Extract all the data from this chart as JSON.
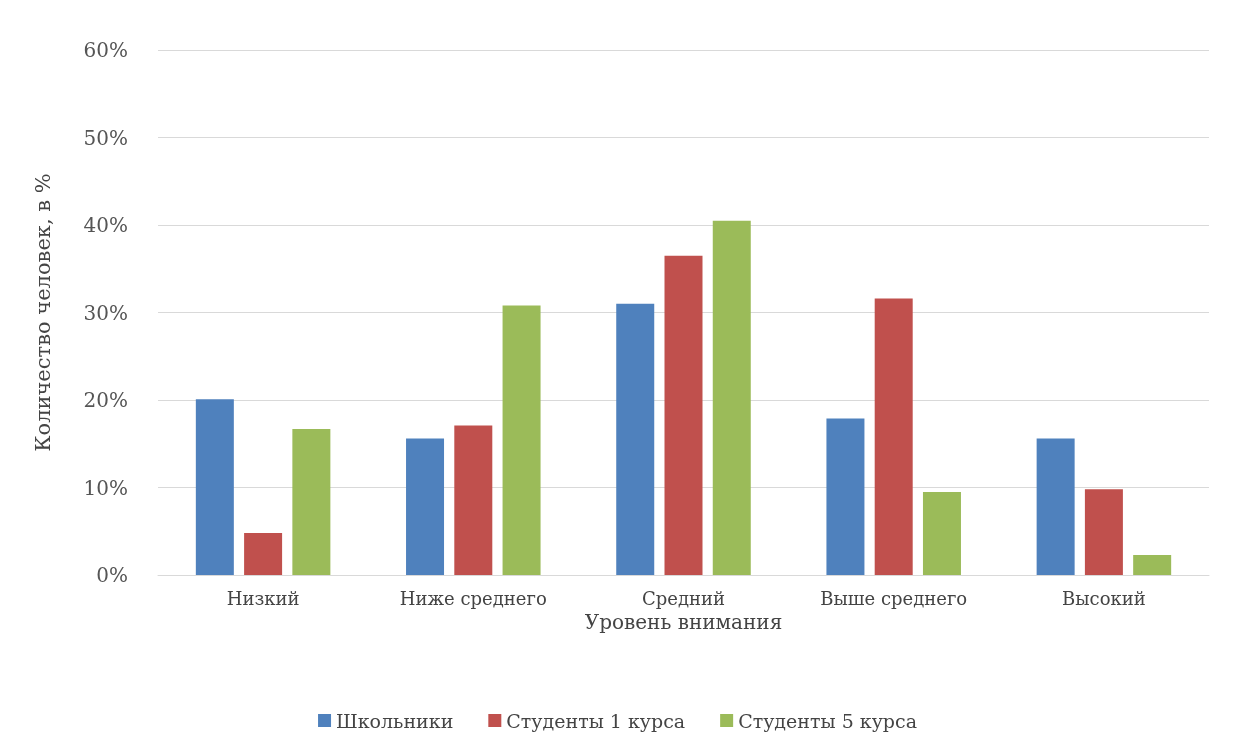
{
  "chart_data": {
    "type": "bar",
    "xlabel": "Уровень внимания",
    "ylabel": "Количество человек, в %",
    "categories": [
      "Низкий",
      "Ниже среднего",
      "Средний",
      "Выше среднего",
      "Высокий"
    ],
    "series": [
      {
        "name": "Школьники",
        "color": "#4f81bd",
        "values": [
          20.1,
          15.6,
          31.0,
          17.9,
          15.6
        ]
      },
      {
        "name": "Студенты 1 курса",
        "color": "#c0504d",
        "values": [
          4.8,
          17.1,
          36.5,
          31.6,
          9.8
        ]
      },
      {
        "name": "Студенты 5 курса",
        "color": "#9bbb59",
        "values": [
          16.7,
          30.8,
          40.5,
          9.5,
          2.3
        ]
      }
    ],
    "ylim": [
      0,
      60
    ],
    "yticks": [
      {
        "value": 0,
        "label": "0%"
      },
      {
        "value": 10,
        "label": "10%"
      },
      {
        "value": 20,
        "label": "20%"
      },
      {
        "value": 30,
        "label": "30%"
      },
      {
        "value": 40,
        "label": "40%"
      },
      {
        "value": 50,
        "label": "50%"
      },
      {
        "value": 60,
        "label": "60%"
      }
    ],
    "grid": "y",
    "legend": "bottom"
  }
}
